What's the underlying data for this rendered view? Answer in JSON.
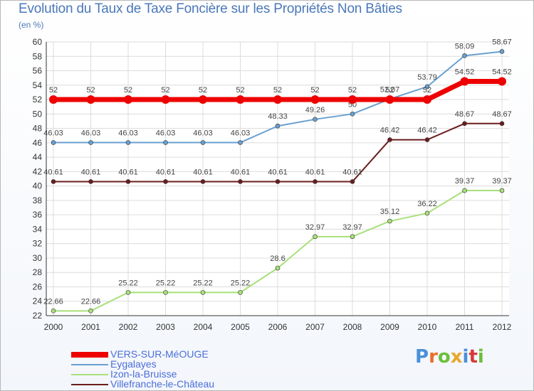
{
  "chart_data": {
    "type": "line",
    "title": "Evolution du Taux de Taxe Foncière sur les Propriétés Non Bâties",
    "subtitle": "(en %)",
    "xlabel": "",
    "ylabel": "(en %)",
    "ylim": [
      22,
      60
    ],
    "ytick_step": 2,
    "grid": true,
    "categories": [
      "2000",
      "2001",
      "2002",
      "2003",
      "2004",
      "2005",
      "2006",
      "2007",
      "2008",
      "2009",
      "2010",
      "2011",
      "2012"
    ],
    "series": [
      {
        "name": "Villefranche-le-Château",
        "color": "#6b1d1d",
        "values": [
          40.61,
          40.61,
          40.61,
          40.61,
          40.61,
          40.61,
          40.61,
          40.61,
          40.61,
          46.42,
          46.42,
          48.67,
          48.67
        ],
        "labels": [
          "40.61",
          "40.61",
          "40.61",
          "40.61",
          "40.61",
          "40.61",
          "40.61",
          "40.61",
          "40.61",
          "46.42",
          "46.42",
          "48.67",
          "48.67"
        ]
      },
      {
        "name": "Izon-la-Bruisse",
        "color": "#a8e07a",
        "values": [
          22.66,
          22.66,
          25.22,
          25.22,
          25.22,
          25.22,
          28.6,
          32.97,
          32.97,
          35.12,
          36.22,
          39.37,
          39.37
        ],
        "labels": [
          "22.66",
          "22.66",
          "25.22",
          "25.22",
          "25.22",
          "25.22",
          "28.6",
          "32.97",
          "32.97",
          "35.12",
          "36.22",
          "39.37",
          "39.37"
        ]
      },
      {
        "name": "Eygalayes",
        "color": "#6aa0d0",
        "values": [
          46.03,
          46.03,
          46.03,
          46.03,
          46.03,
          46.03,
          48.33,
          49.26,
          50,
          52.07,
          53.79,
          58.09,
          58.67
        ],
        "labels": [
          "46.03",
          "46.03",
          "46.03",
          "46.03",
          "46.03",
          "46.03",
          "48.33",
          "49.26",
          "50",
          "52.07",
          "53.79",
          "58.09",
          "58.67"
        ]
      },
      {
        "name": "VERS-SUR-MéOUGE",
        "color": "#ee0000",
        "values": [
          52,
          52,
          52,
          52,
          52,
          52,
          52,
          52,
          52,
          52,
          52,
          54.52,
          54.52
        ],
        "labels": [
          "52",
          "52",
          "52",
          "52",
          "52",
          "52",
          "52",
          "52",
          "52",
          "52",
          "52",
          "54.52",
          "54.52"
        ]
      }
    ],
    "legend": [
      "VERS-SUR-MéOUGE",
      "Eygalayes",
      "Izon-la-Bruisse",
      "Villefranche-le-Château"
    ],
    "legend_placement": "bottom-left"
  },
  "logo": {
    "letters": [
      "P",
      "r",
      "o",
      "x",
      "i",
      "t",
      "i"
    ],
    "colors": [
      "#4a90d9",
      "#e86f2a",
      "#6bbf3a",
      "#e8a72a",
      "#4a90d9",
      "#d63a3a",
      "#6bbf3a"
    ]
  }
}
